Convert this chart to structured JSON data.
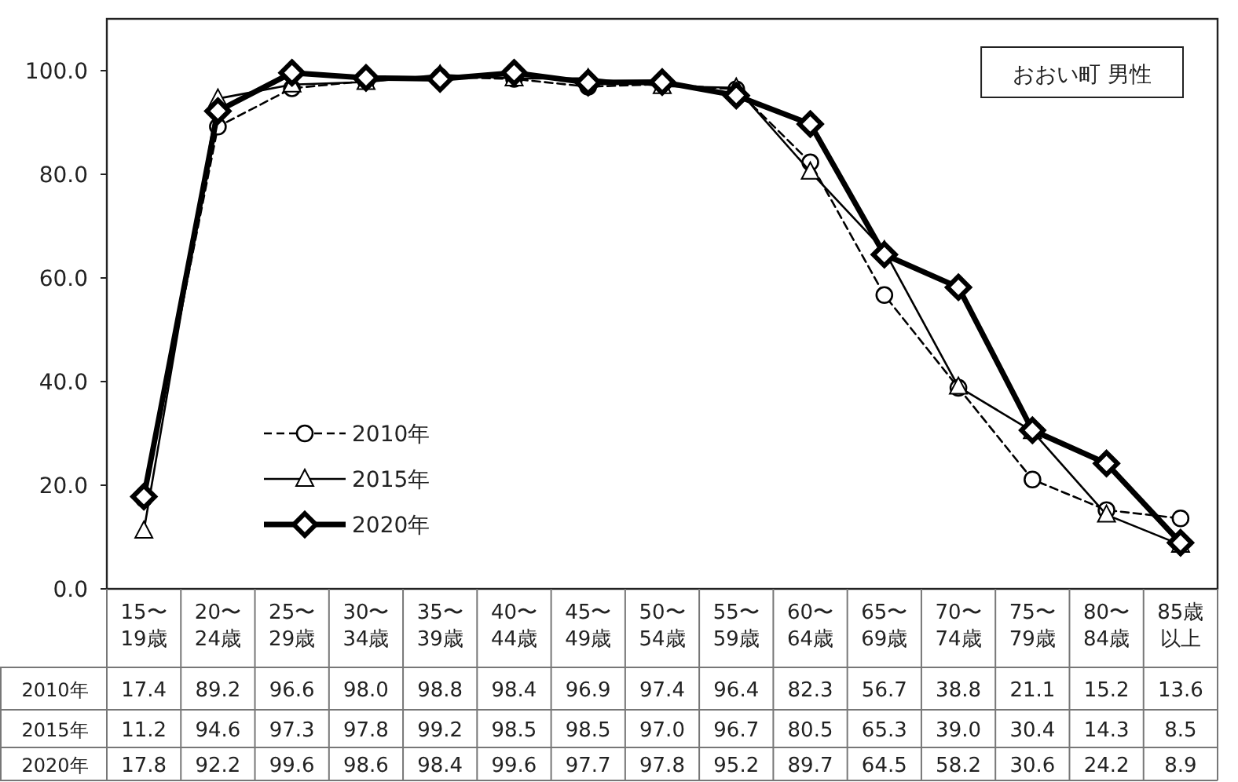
{
  "chart_data": {
    "type": "line",
    "title": "おおい町 男性",
    "categories": [
      "15〜19歳",
      "20〜24歳",
      "25〜29歳",
      "30〜34歳",
      "35〜39歳",
      "40〜44歳",
      "45〜49歳",
      "50〜54歳",
      "55〜59歳",
      "60〜64歳",
      "65〜69歳",
      "70〜74歳",
      "75〜79歳",
      "80〜84歳",
      "85歳以上"
    ],
    "ylim": [
      0,
      110
    ],
    "yticks": [
      {
        "value": 0,
        "label": "0.0"
      },
      {
        "value": 20,
        "label": "20.0"
      },
      {
        "value": 40,
        "label": "40.0"
      },
      {
        "value": 60,
        "label": "60.0"
      },
      {
        "value": 80,
        "label": "80.0"
      },
      {
        "value": 100,
        "label": "100.0"
      }
    ],
    "grid": false,
    "legend": "bottom left",
    "series": [
      {
        "name": "2010年",
        "color": "#000000",
        "marker": "circle",
        "line_style": "dashed",
        "values": [
          17.4,
          89.2,
          96.6,
          98.0,
          98.8,
          98.4,
          96.9,
          97.4,
          96.4,
          82.3,
          56.7,
          38.8,
          21.1,
          15.2,
          13.6
        ],
        "value_labels": [
          "17.4",
          "89.2",
          "96.6",
          "98.0",
          "98.8",
          "98.4",
          "96.9",
          "97.4",
          "96.4",
          "82.3",
          "56.7",
          "38.8",
          "21.1",
          "15.2",
          "13.6"
        ]
      },
      {
        "name": "2015年",
        "color": "#000000",
        "marker": "triangle",
        "line_style": "solid",
        "values": [
          11.2,
          94.6,
          97.3,
          97.8,
          99.2,
          98.5,
          98.5,
          97.0,
          96.7,
          80.5,
          65.3,
          39.0,
          30.4,
          14.3,
          8.5
        ],
        "value_labels": [
          "11.2",
          "94.6",
          "97.3",
          "97.8",
          "99.2",
          "98.5",
          "98.5",
          "97.0",
          "96.7",
          "80.5",
          "65.3",
          "39.0",
          "30.4",
          "14.3",
          "8.5"
        ]
      },
      {
        "name": "2020年",
        "color": "#000000",
        "marker": "diamond",
        "line_style": "solid",
        "values": [
          17.8,
          92.2,
          99.6,
          98.6,
          98.4,
          99.6,
          97.7,
          97.8,
          95.2,
          89.7,
          64.5,
          58.2,
          30.6,
          24.2,
          8.9
        ],
        "value_labels": [
          "17.8",
          "92.2",
          "99.6",
          "98.6",
          "98.4",
          "99.6",
          "97.7",
          "97.8",
          "95.2",
          "89.7",
          "64.5",
          "58.2",
          "30.6",
          "24.2",
          "8.9"
        ]
      }
    ]
  }
}
